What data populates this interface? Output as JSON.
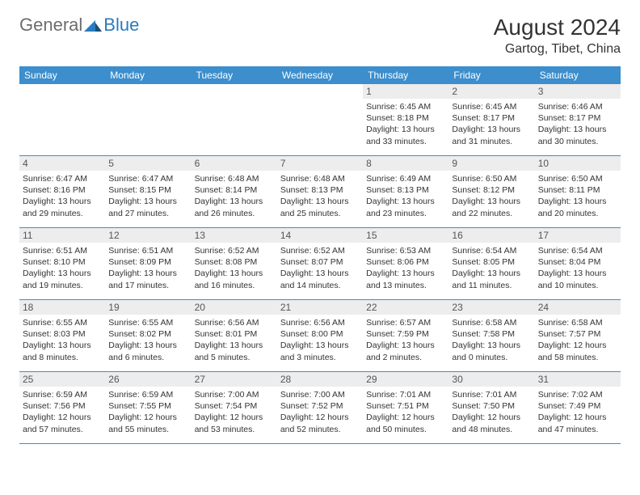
{
  "brand": {
    "general": "General",
    "blue": "Blue",
    "logo_color": "#2a7bbf"
  },
  "header": {
    "month_title": "August 2024",
    "location": "Gartog, Tibet, China"
  },
  "colors": {
    "header_bar": "#3c8ecc",
    "day_number_bg": "#ededed",
    "text": "#333333",
    "week_border": "#3c8ecc"
  },
  "weekdays": [
    "Sunday",
    "Monday",
    "Tuesday",
    "Wednesday",
    "Thursday",
    "Friday",
    "Saturday"
  ],
  "weeks": [
    [
      {
        "n": "",
        "sunrise": "",
        "sunset": "",
        "daylight": ""
      },
      {
        "n": "",
        "sunrise": "",
        "sunset": "",
        "daylight": ""
      },
      {
        "n": "",
        "sunrise": "",
        "sunset": "",
        "daylight": ""
      },
      {
        "n": "",
        "sunrise": "",
        "sunset": "",
        "daylight": ""
      },
      {
        "n": "1",
        "sunrise": "Sunrise: 6:45 AM",
        "sunset": "Sunset: 8:18 PM",
        "daylight": "Daylight: 13 hours and 33 minutes."
      },
      {
        "n": "2",
        "sunrise": "Sunrise: 6:45 AM",
        "sunset": "Sunset: 8:17 PM",
        "daylight": "Daylight: 13 hours and 31 minutes."
      },
      {
        "n": "3",
        "sunrise": "Sunrise: 6:46 AM",
        "sunset": "Sunset: 8:17 PM",
        "daylight": "Daylight: 13 hours and 30 minutes."
      }
    ],
    [
      {
        "n": "4",
        "sunrise": "Sunrise: 6:47 AM",
        "sunset": "Sunset: 8:16 PM",
        "daylight": "Daylight: 13 hours and 29 minutes."
      },
      {
        "n": "5",
        "sunrise": "Sunrise: 6:47 AM",
        "sunset": "Sunset: 8:15 PM",
        "daylight": "Daylight: 13 hours and 27 minutes."
      },
      {
        "n": "6",
        "sunrise": "Sunrise: 6:48 AM",
        "sunset": "Sunset: 8:14 PM",
        "daylight": "Daylight: 13 hours and 26 minutes."
      },
      {
        "n": "7",
        "sunrise": "Sunrise: 6:48 AM",
        "sunset": "Sunset: 8:13 PM",
        "daylight": "Daylight: 13 hours and 25 minutes."
      },
      {
        "n": "8",
        "sunrise": "Sunrise: 6:49 AM",
        "sunset": "Sunset: 8:13 PM",
        "daylight": "Daylight: 13 hours and 23 minutes."
      },
      {
        "n": "9",
        "sunrise": "Sunrise: 6:50 AM",
        "sunset": "Sunset: 8:12 PM",
        "daylight": "Daylight: 13 hours and 22 minutes."
      },
      {
        "n": "10",
        "sunrise": "Sunrise: 6:50 AM",
        "sunset": "Sunset: 8:11 PM",
        "daylight": "Daylight: 13 hours and 20 minutes."
      }
    ],
    [
      {
        "n": "11",
        "sunrise": "Sunrise: 6:51 AM",
        "sunset": "Sunset: 8:10 PM",
        "daylight": "Daylight: 13 hours and 19 minutes."
      },
      {
        "n": "12",
        "sunrise": "Sunrise: 6:51 AM",
        "sunset": "Sunset: 8:09 PM",
        "daylight": "Daylight: 13 hours and 17 minutes."
      },
      {
        "n": "13",
        "sunrise": "Sunrise: 6:52 AM",
        "sunset": "Sunset: 8:08 PM",
        "daylight": "Daylight: 13 hours and 16 minutes."
      },
      {
        "n": "14",
        "sunrise": "Sunrise: 6:52 AM",
        "sunset": "Sunset: 8:07 PM",
        "daylight": "Daylight: 13 hours and 14 minutes."
      },
      {
        "n": "15",
        "sunrise": "Sunrise: 6:53 AM",
        "sunset": "Sunset: 8:06 PM",
        "daylight": "Daylight: 13 hours and 13 minutes."
      },
      {
        "n": "16",
        "sunrise": "Sunrise: 6:54 AM",
        "sunset": "Sunset: 8:05 PM",
        "daylight": "Daylight: 13 hours and 11 minutes."
      },
      {
        "n": "17",
        "sunrise": "Sunrise: 6:54 AM",
        "sunset": "Sunset: 8:04 PM",
        "daylight": "Daylight: 13 hours and 10 minutes."
      }
    ],
    [
      {
        "n": "18",
        "sunrise": "Sunrise: 6:55 AM",
        "sunset": "Sunset: 8:03 PM",
        "daylight": "Daylight: 13 hours and 8 minutes."
      },
      {
        "n": "19",
        "sunrise": "Sunrise: 6:55 AM",
        "sunset": "Sunset: 8:02 PM",
        "daylight": "Daylight: 13 hours and 6 minutes."
      },
      {
        "n": "20",
        "sunrise": "Sunrise: 6:56 AM",
        "sunset": "Sunset: 8:01 PM",
        "daylight": "Daylight: 13 hours and 5 minutes."
      },
      {
        "n": "21",
        "sunrise": "Sunrise: 6:56 AM",
        "sunset": "Sunset: 8:00 PM",
        "daylight": "Daylight: 13 hours and 3 minutes."
      },
      {
        "n": "22",
        "sunrise": "Sunrise: 6:57 AM",
        "sunset": "Sunset: 7:59 PM",
        "daylight": "Daylight: 13 hours and 2 minutes."
      },
      {
        "n": "23",
        "sunrise": "Sunrise: 6:58 AM",
        "sunset": "Sunset: 7:58 PM",
        "daylight": "Daylight: 13 hours and 0 minutes."
      },
      {
        "n": "24",
        "sunrise": "Sunrise: 6:58 AM",
        "sunset": "Sunset: 7:57 PM",
        "daylight": "Daylight: 12 hours and 58 minutes."
      }
    ],
    [
      {
        "n": "25",
        "sunrise": "Sunrise: 6:59 AM",
        "sunset": "Sunset: 7:56 PM",
        "daylight": "Daylight: 12 hours and 57 minutes."
      },
      {
        "n": "26",
        "sunrise": "Sunrise: 6:59 AM",
        "sunset": "Sunset: 7:55 PM",
        "daylight": "Daylight: 12 hours and 55 minutes."
      },
      {
        "n": "27",
        "sunrise": "Sunrise: 7:00 AM",
        "sunset": "Sunset: 7:54 PM",
        "daylight": "Daylight: 12 hours and 53 minutes."
      },
      {
        "n": "28",
        "sunrise": "Sunrise: 7:00 AM",
        "sunset": "Sunset: 7:52 PM",
        "daylight": "Daylight: 12 hours and 52 minutes."
      },
      {
        "n": "29",
        "sunrise": "Sunrise: 7:01 AM",
        "sunset": "Sunset: 7:51 PM",
        "daylight": "Daylight: 12 hours and 50 minutes."
      },
      {
        "n": "30",
        "sunrise": "Sunrise: 7:01 AM",
        "sunset": "Sunset: 7:50 PM",
        "daylight": "Daylight: 12 hours and 48 minutes."
      },
      {
        "n": "31",
        "sunrise": "Sunrise: 7:02 AM",
        "sunset": "Sunset: 7:49 PM",
        "daylight": "Daylight: 12 hours and 47 minutes."
      }
    ]
  ]
}
